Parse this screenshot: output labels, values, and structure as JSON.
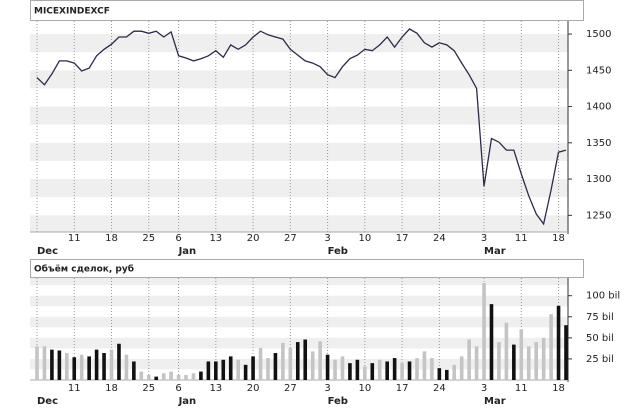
{
  "chart_data": [
    {
      "type": "line",
      "title": "MICEXINDEXCF",
      "color": "#2b2b4a",
      "categories": [
        null,
        null,
        null,
        null,
        null,
        "11",
        null,
        null,
        null,
        null,
        "18",
        null,
        null,
        null,
        null,
        "25",
        null,
        null,
        null,
        "6",
        null,
        null,
        null,
        null,
        "13",
        null,
        null,
        null,
        null,
        "20",
        null,
        null,
        null,
        null,
        "27",
        null,
        null,
        null,
        null,
        "3",
        null,
        null,
        null,
        null,
        "10",
        null,
        null,
        null,
        null,
        "17",
        null,
        null,
        null,
        null,
        "24",
        null,
        null,
        null,
        null,
        null,
        "3",
        null,
        null,
        null,
        null,
        "11",
        null,
        null,
        null,
        null,
        "18",
        null
      ],
      "months": [
        "Dec",
        null,
        null,
        null,
        null,
        null,
        null,
        null,
        null,
        null,
        null,
        null,
        null,
        null,
        null,
        null,
        null,
        null,
        null,
        "Jan",
        null,
        null,
        null,
        null,
        null,
        null,
        null,
        null,
        null,
        null,
        null,
        null,
        null,
        null,
        null,
        null,
        null,
        null,
        null,
        "Feb",
        null,
        null,
        null,
        null,
        null,
        null,
        null,
        null,
        null,
        null,
        null,
        null,
        null,
        null,
        null,
        null,
        null,
        null,
        null,
        null,
        "Mar",
        null,
        null,
        null,
        null,
        null,
        null,
        null,
        null,
        null,
        null,
        null
      ],
      "values": [
        1440,
        1430,
        1445,
        1463,
        1463,
        1460,
        1449,
        1453,
        1470,
        1479,
        1486,
        1496,
        1496,
        1504,
        1504,
        1501,
        1504,
        1496,
        1503,
        1470,
        1467,
        1463,
        1466,
        1470,
        1477,
        1468,
        1485,
        1479,
        1485,
        1496,
        1504,
        1499,
        1496,
        1493,
        1479,
        1471,
        1463,
        1460,
        1455,
        1444,
        1440,
        1455,
        1466,
        1471,
        1479,
        1477,
        1485,
        1496,
        1482,
        1496,
        1507,
        1501,
        1488,
        1482,
        1488,
        1485,
        1477,
        1460,
        1444,
        1425,
        1290,
        1356,
        1351,
        1340,
        1340,
        1307,
        1277,
        1252,
        1238,
        1285,
        1337,
        1340
      ],
      "ylim": [
        1227,
        1518
      ],
      "yticks": [
        1250,
        1300,
        1350,
        1400,
        1450,
        1500
      ],
      "grid": true
    },
    {
      "type": "bar",
      "title": "Объём сделок, руб",
      "categories": [
        null,
        null,
        null,
        null,
        null,
        "11",
        null,
        null,
        null,
        null,
        "18",
        null,
        null,
        null,
        null,
        "25",
        null,
        null,
        null,
        "6",
        null,
        null,
        null,
        null,
        "13",
        null,
        null,
        null,
        null,
        "20",
        null,
        null,
        null,
        null,
        "27",
        null,
        null,
        null,
        null,
        "3",
        null,
        null,
        null,
        null,
        "10",
        null,
        null,
        null,
        null,
        "17",
        null,
        null,
        null,
        null,
        "24",
        null,
        null,
        null,
        null,
        null,
        "3",
        null,
        null,
        null,
        null,
        "11",
        null,
        null,
        null,
        null,
        "18",
        null
      ],
      "months": [
        "Dec",
        null,
        null,
        null,
        null,
        null,
        null,
        null,
        null,
        null,
        null,
        null,
        null,
        null,
        null,
        null,
        null,
        null,
        null,
        "Jan",
        null,
        null,
        null,
        null,
        null,
        null,
        null,
        null,
        null,
        null,
        null,
        null,
        null,
        null,
        null,
        null,
        null,
        null,
        null,
        "Feb",
        null,
        null,
        null,
        null,
        null,
        null,
        null,
        null,
        null,
        null,
        null,
        null,
        null,
        null,
        null,
        null,
        null,
        null,
        null,
        null,
        "Mar",
        null,
        null,
        null,
        null,
        null,
        null,
        null,
        null,
        null,
        null,
        null
      ],
      "values": [
        40,
        40,
        36,
        35,
        32,
        27,
        30,
        28,
        36,
        32,
        36,
        43,
        30,
        22,
        10,
        6,
        4,
        8,
        10,
        6,
        6,
        8,
        10,
        22,
        22,
        24,
        28,
        24,
        18,
        28,
        38,
        26,
        32,
        44,
        38,
        45,
        48,
        34,
        46,
        30,
        24,
        28,
        20,
        24,
        16,
        20,
        24,
        22,
        26,
        20,
        22,
        26,
        34,
        26,
        14,
        12,
        18,
        28,
        48,
        40,
        115,
        90,
        45,
        68,
        42,
        60,
        40,
        45,
        50,
        78,
        88,
        65
      ],
      "colors": [
        "#c4c4c4",
        "#c4c4c4",
        "#111",
        "#111",
        "#c4c4c4",
        "#111",
        "#c4c4c4",
        "#111",
        "#111",
        "#111",
        "#c4c4c4",
        "#111",
        "#c4c4c4",
        "#111",
        "#c4c4c4",
        "#c4c4c4",
        "#111",
        "#c4c4c4",
        "#c4c4c4",
        "#c4c4c4",
        "#c4c4c4",
        "#c4c4c4",
        "#111",
        "#111",
        "#111",
        "#111",
        "#111",
        "#c4c4c4",
        "#111",
        "#111",
        "#c4c4c4",
        "#c4c4c4",
        "#111",
        "#c4c4c4",
        "#c4c4c4",
        "#111",
        "#111",
        "#c4c4c4",
        "#c4c4c4",
        "#111",
        "#c4c4c4",
        "#c4c4c4",
        "#111",
        "#111",
        "#c4c4c4",
        "#111",
        "#c4c4c4",
        "#111",
        "#111",
        "#c4c4c4",
        "#111",
        "#c4c4c4",
        "#c4c4c4",
        "#c4c4c4",
        "#111",
        "#111",
        "#c4c4c4",
        "#c4c4c4",
        "#c4c4c4",
        "#c4c4c4",
        "#c4c4c4",
        "#111",
        "#c4c4c4",
        "#c4c4c4",
        "#111",
        "#c4c4c4",
        "#c4c4c4",
        "#c4c4c4",
        "#c4c4c4",
        "#c4c4c4",
        "#111",
        "#111"
      ],
      "ylim": [
        0,
        121
      ],
      "yticks": [
        {
          "value": 25,
          "label": "25 bil"
        },
        {
          "value": 50,
          "label": "50 bil"
        },
        {
          "value": 75,
          "label": "75 bil"
        },
        {
          "value": 100,
          "label": "100 bil"
        }
      ],
      "grid": true
    }
  ]
}
